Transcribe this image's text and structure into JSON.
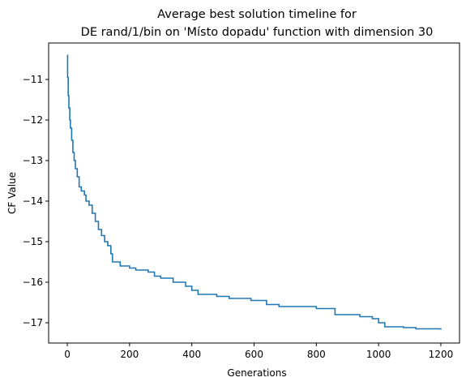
{
  "chart_data": {
    "type": "line",
    "title": [
      "Average best solution timeline for",
      "DE rand/1/bin on 'Místo dopadu' function with dimension 30"
    ],
    "xlabel": "Generations",
    "ylabel": "CF Value",
    "xlim": [
      -60,
      1260
    ],
    "ylim": [
      -17.5,
      -10.1
    ],
    "xticks": [
      0,
      200,
      400,
      600,
      800,
      1000,
      1200
    ],
    "yticks": [
      -17,
      -16,
      -15,
      -14,
      -13,
      -12,
      -11
    ],
    "grid": false,
    "colors": {
      "line": "#1f77b4",
      "axes": "#000000",
      "background": "#ffffff"
    },
    "series": [
      {
        "values": [
          [
            0,
            -10.4
          ],
          [
            1,
            -10.95
          ],
          [
            3,
            -11.4
          ],
          [
            5,
            -11.7
          ],
          [
            8,
            -12.0
          ],
          [
            10,
            -12.2
          ],
          [
            14,
            -12.5
          ],
          [
            18,
            -12.8
          ],
          [
            22,
            -13.0
          ],
          [
            26,
            -13.2
          ],
          [
            32,
            -13.4
          ],
          [
            38,
            -13.65
          ],
          [
            45,
            -13.75
          ],
          [
            55,
            -13.85
          ],
          [
            60,
            -14.0
          ],
          [
            70,
            -14.1
          ],
          [
            80,
            -14.3
          ],
          [
            90,
            -14.5
          ],
          [
            100,
            -14.7
          ],
          [
            110,
            -14.85
          ],
          [
            120,
            -15.0
          ],
          [
            130,
            -15.1
          ],
          [
            140,
            -15.3
          ],
          [
            145,
            -15.5
          ],
          [
            160,
            -15.5
          ],
          [
            170,
            -15.6
          ],
          [
            200,
            -15.65
          ],
          [
            220,
            -15.7
          ],
          [
            260,
            -15.75
          ],
          [
            280,
            -15.85
          ],
          [
            300,
            -15.9
          ],
          [
            340,
            -16.0
          ],
          [
            380,
            -16.1
          ],
          [
            400,
            -16.2
          ],
          [
            420,
            -16.3
          ],
          [
            480,
            -16.35
          ],
          [
            520,
            -16.4
          ],
          [
            590,
            -16.45
          ],
          [
            640,
            -16.55
          ],
          [
            680,
            -16.6
          ],
          [
            800,
            -16.65
          ],
          [
            860,
            -16.8
          ],
          [
            940,
            -16.85
          ],
          [
            980,
            -16.9
          ],
          [
            1000,
            -17.0
          ],
          [
            1020,
            -17.1
          ],
          [
            1080,
            -17.12
          ],
          [
            1120,
            -17.15
          ],
          [
            1200,
            -17.17
          ]
        ]
      }
    ]
  }
}
